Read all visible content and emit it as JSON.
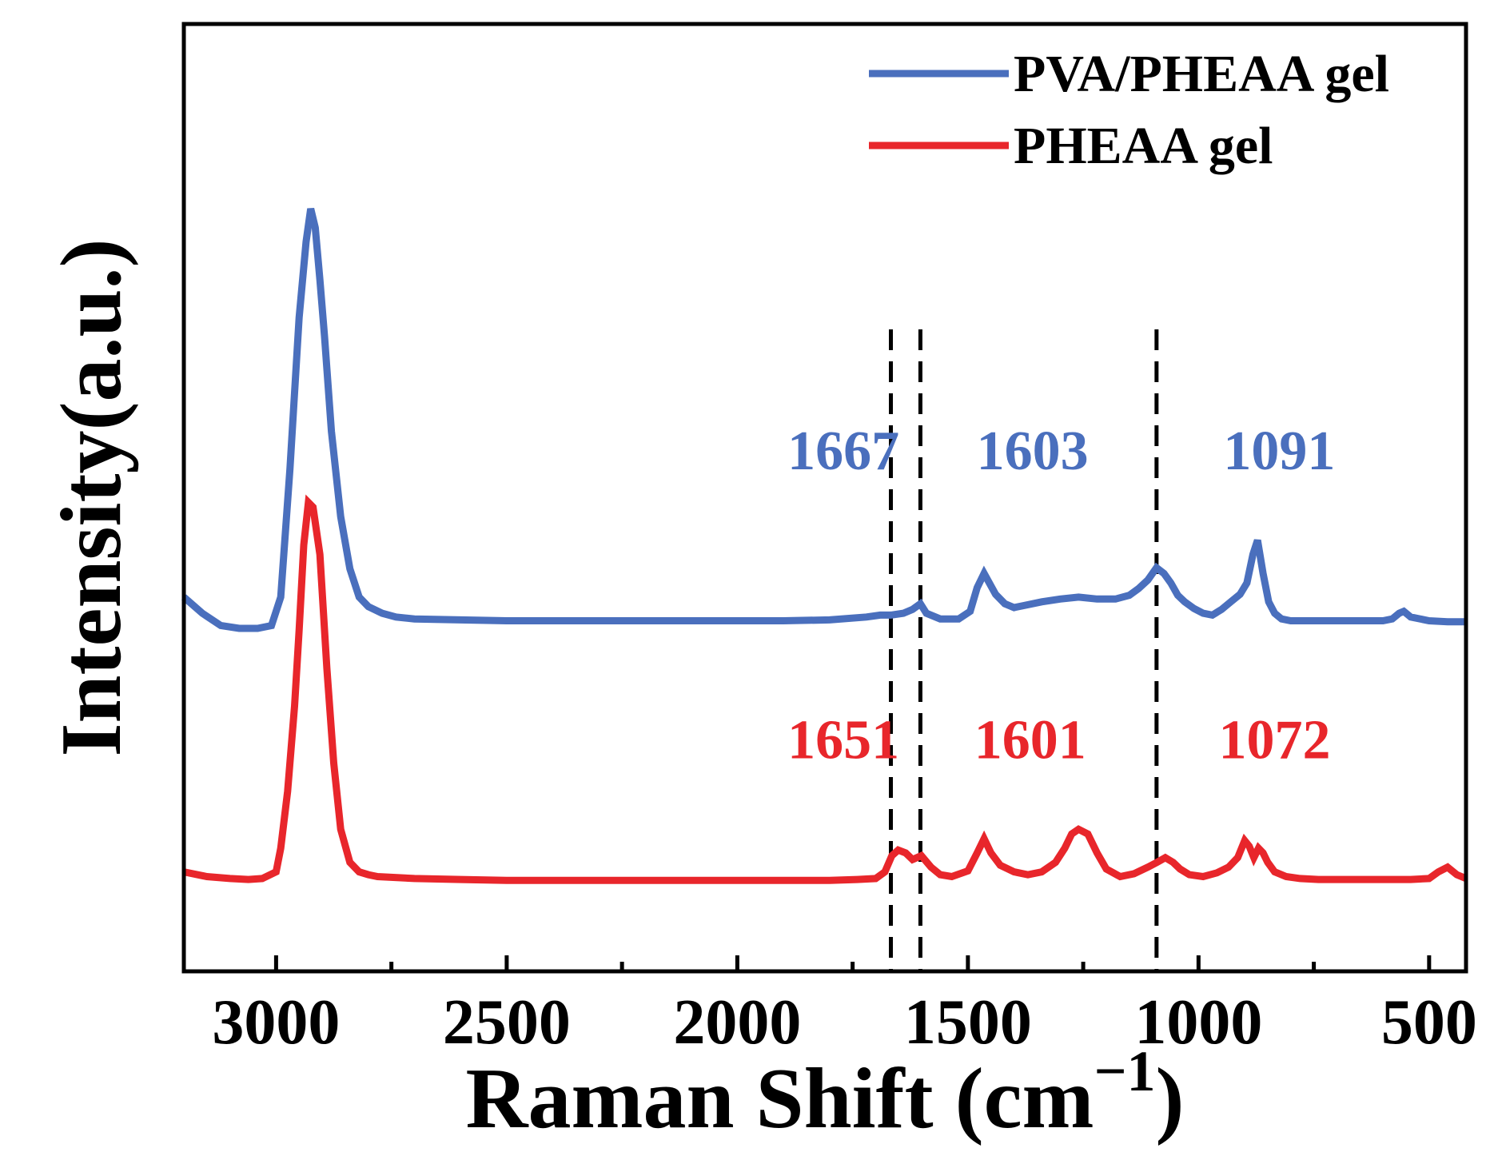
{
  "chart_data": {
    "type": "line",
    "title": "",
    "xlabel": "Raman Shift (cm",
    "xlabel_sup": "−1",
    "xlabel_close": ")",
    "ylabel": "Intensity(a.u.)",
    "xlim": [
      3200,
      420
    ],
    "ylim": [
      0,
      10
    ],
    "x_ticks": [
      3000,
      2500,
      2000,
      1500,
      1000,
      500
    ],
    "x_tick_labels": [
      "3000",
      "2500",
      "2000",
      "1500",
      "1000",
      "500"
    ],
    "grid": false,
    "legend_position": "top-right",
    "series": [
      {
        "name": "PVA/PHEAA gel",
        "color": "#4a6fbd",
        "x": [
          3200,
          3160,
          3120,
          3080,
          3040,
          3010,
          2990,
          2970,
          2950,
          2935,
          2925,
          2915,
          2905,
          2895,
          2880,
          2860,
          2840,
          2820,
          2800,
          2770,
          2740,
          2700,
          2600,
          2500,
          2400,
          2300,
          2200,
          2100,
          2000,
          1900,
          1800,
          1720,
          1690,
          1667,
          1640,
          1620,
          1603,
          1590,
          1560,
          1520,
          1495,
          1480,
          1465,
          1440,
          1420,
          1400,
          1380,
          1340,
          1300,
          1260,
          1220,
          1180,
          1150,
          1130,
          1110,
          1091,
          1075,
          1060,
          1045,
          1030,
          1010,
          990,
          970,
          950,
          930,
          910,
          895,
          882,
          872,
          860,
          848,
          835,
          820,
          800,
          760,
          720,
          680,
          640,
          600,
          580,
          565,
          555,
          540,
          500,
          460,
          420
        ],
        "values": [
          3.95,
          3.78,
          3.65,
          3.62,
          3.62,
          3.65,
          3.95,
          5.3,
          6.9,
          7.7,
          8.05,
          7.85,
          7.3,
          6.7,
          5.7,
          4.8,
          4.25,
          3.95,
          3.85,
          3.78,
          3.74,
          3.72,
          3.71,
          3.7,
          3.7,
          3.7,
          3.7,
          3.7,
          3.7,
          3.7,
          3.71,
          3.74,
          3.76,
          3.76,
          3.78,
          3.82,
          3.88,
          3.78,
          3.72,
          3.72,
          3.8,
          4.05,
          4.2,
          3.98,
          3.88,
          3.84,
          3.86,
          3.9,
          3.93,
          3.95,
          3.93,
          3.93,
          3.97,
          4.04,
          4.13,
          4.26,
          4.2,
          4.1,
          3.97,
          3.9,
          3.83,
          3.78,
          3.76,
          3.82,
          3.9,
          3.98,
          4.1,
          4.4,
          4.55,
          4.2,
          3.9,
          3.78,
          3.72,
          3.7,
          3.7,
          3.7,
          3.7,
          3.7,
          3.7,
          3.72,
          3.78,
          3.8,
          3.74,
          3.7,
          3.69,
          3.69
        ]
      },
      {
        "name": "PHEAA gel",
        "color": "#e8262b",
        "x": [
          3200,
          3150,
          3100,
          3060,
          3030,
          3000,
          2990,
          2975,
          2960,
          2950,
          2940,
          2930,
          2920,
          2905,
          2890,
          2875,
          2860,
          2840,
          2820,
          2800,
          2780,
          2700,
          2600,
          2500,
          2400,
          2300,
          2200,
          2100,
          2000,
          1900,
          1800,
          1740,
          1700,
          1680,
          1665,
          1651,
          1635,
          1620,
          1601,
          1580,
          1560,
          1535,
          1500,
          1480,
          1465,
          1450,
          1430,
          1400,
          1370,
          1340,
          1310,
          1290,
          1275,
          1260,
          1240,
          1220,
          1200,
          1170,
          1140,
          1110,
          1090,
          1072,
          1055,
          1040,
          1020,
          990,
          960,
          935,
          915,
          900,
          890,
          880,
          870,
          860,
          850,
          835,
          810,
          780,
          740,
          700,
          660,
          620,
          580,
          540,
          500,
          480,
          460,
          440,
          420
        ],
        "values": [
          1.05,
          1.0,
          0.98,
          0.97,
          0.98,
          1.05,
          1.3,
          1.9,
          2.8,
          3.6,
          4.5,
          4.95,
          4.9,
          4.4,
          3.2,
          2.2,
          1.5,
          1.15,
          1.05,
          1.02,
          1.0,
          0.98,
          0.97,
          0.96,
          0.96,
          0.96,
          0.96,
          0.96,
          0.96,
          0.96,
          0.96,
          0.97,
          0.98,
          1.05,
          1.22,
          1.28,
          1.25,
          1.18,
          1.22,
          1.1,
          1.02,
          1.0,
          1.06,
          1.25,
          1.4,
          1.25,
          1.12,
          1.05,
          1.02,
          1.05,
          1.15,
          1.3,
          1.45,
          1.5,
          1.45,
          1.25,
          1.08,
          1.0,
          1.03,
          1.1,
          1.15,
          1.2,
          1.15,
          1.08,
          1.02,
          1.0,
          1.04,
          1.1,
          1.2,
          1.38,
          1.32,
          1.2,
          1.3,
          1.25,
          1.15,
          1.05,
          1.0,
          0.98,
          0.97,
          0.97,
          0.97,
          0.97,
          0.97,
          0.97,
          0.98,
          1.05,
          1.1,
          1.02,
          0.98
        ]
      }
    ],
    "reference_lines": [
      1667,
      1603,
      1091
    ],
    "annotations": [
      {
        "text": "1667",
        "series": "PVA/PHEAA gel",
        "x": 1770,
        "y": 5.3,
        "color": "#4a6fbd"
      },
      {
        "text": "1603",
        "series": "PVA/PHEAA gel",
        "x": 1360,
        "y": 5.3,
        "color": "#4a6fbd"
      },
      {
        "text": "1091",
        "series": "PVA/PHEAA gel",
        "x": 825,
        "y": 5.3,
        "color": "#4a6fbd"
      },
      {
        "text": "1651",
        "series": "PHEAA gel",
        "x": 1770,
        "y": 2.25,
        "color": "#e8262b"
      },
      {
        "text": "1601",
        "series": "PHEAA gel",
        "x": 1365,
        "y": 2.25,
        "color": "#e8262b"
      },
      {
        "text": "1072",
        "series": "PHEAA gel",
        "x": 835,
        "y": 2.25,
        "color": "#e8262b"
      }
    ]
  }
}
